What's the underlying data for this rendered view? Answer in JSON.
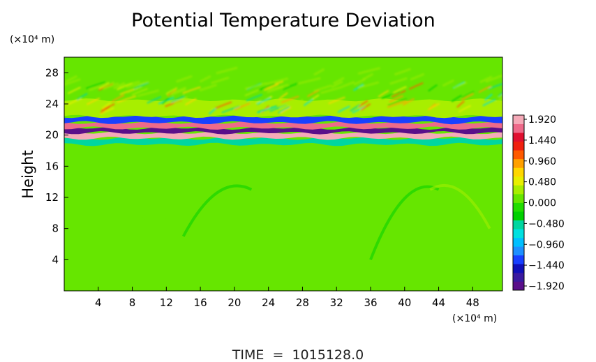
{
  "chart_data": {
    "type": "heatmap",
    "title": "Potential Temperature Deviation",
    "ylabel": "Height",
    "xunit": "(×10⁴ m)",
    "yunit": "(×10⁴ m)",
    "xlim": [
      0,
      51.5
    ],
    "ylim": [
      0,
      30
    ],
    "xticks": [
      4,
      8,
      12,
      16,
      20,
      24,
      28,
      32,
      36,
      40,
      44,
      48
    ],
    "yticks": [
      4,
      8,
      12,
      16,
      20,
      24,
      28
    ],
    "colorbar": {
      "range": [
        -1.92,
        1.92
      ],
      "tick_labels": [
        "1.920",
        "1.440",
        "0.960",
        "0.480",
        "0.000",
        "−0.480",
        "−0.960",
        "−1.440",
        "−1.920"
      ],
      "colors": [
        "#5a0f8a",
        "#3a1aa0",
        "#1010b8",
        "#1840ff",
        "#1e90ff",
        "#00bfff",
        "#00e0e0",
        "#00d6a0",
        "#00d000",
        "#22dd00",
        "#66e600",
        "#a8ee00",
        "#e8ef00",
        "#ffd700",
        "#ffa000",
        "#ff5a00",
        "#f02010",
        "#e01030",
        "#ee6a8a",
        "#f5aab8"
      ]
    },
    "field_description_bands": [
      {
        "y": [
          0,
          18.8
        ],
        "value": 0.0
      },
      {
        "y": [
          18.8,
          19.6
        ],
        "value": -0.5
      },
      {
        "y": [
          19.6,
          20.3
        ],
        "value": 1.9
      },
      {
        "y": [
          20.3,
          20.9
        ],
        "value": -1.9
      },
      {
        "y": [
          20.9,
          21.6
        ],
        "value": 1.6
      },
      {
        "y": [
          21.6,
          22.4
        ],
        "value": -1.2
      },
      {
        "y": [
          22.4,
          24.5
        ],
        "value": 0.35
      },
      {
        "y": [
          24.5,
          30
        ],
        "value": 0.0
      }
    ],
    "background_value": 0.0,
    "legend": "right",
    "grid": false
  },
  "footer": {
    "time_label": "TIME  =  1015128.0"
  }
}
